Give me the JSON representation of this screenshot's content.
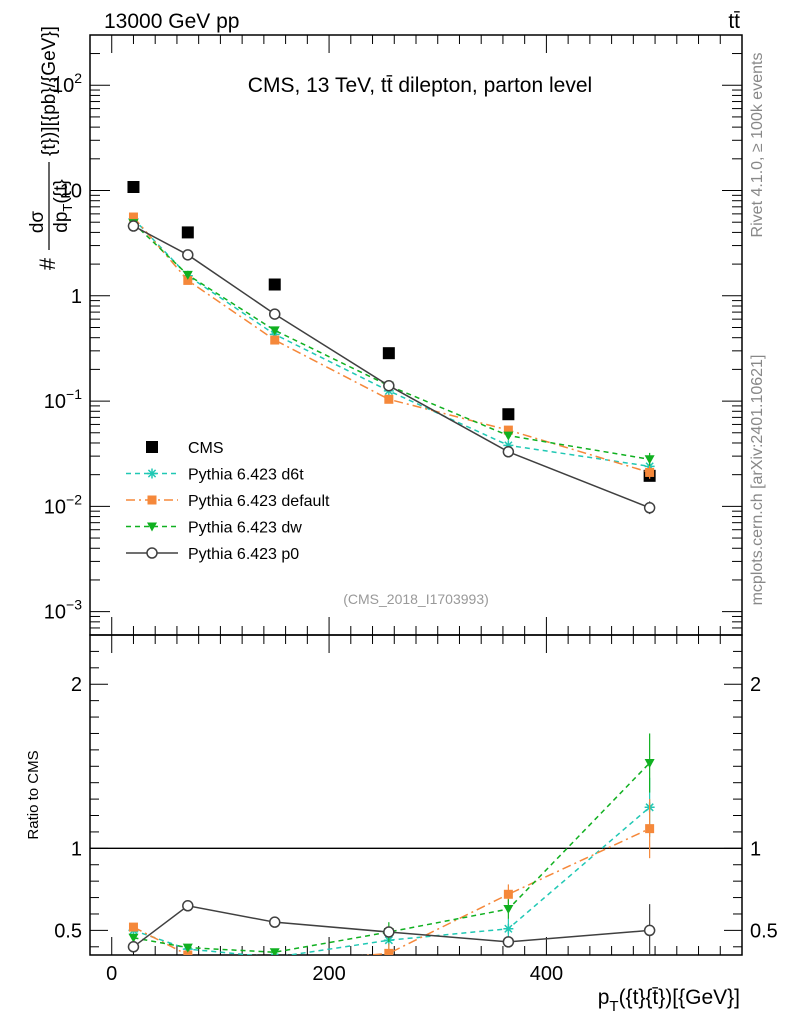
{
  "header": {
    "left": "13000 GeV pp",
    "right": "tt̄"
  },
  "side_labels": {
    "rivet": "Rivet 4.1.0, ≥ 100k events",
    "mcplots": "mcplots.cern.ch [arXiv:2401.10621]"
  },
  "chart_data": [
    {
      "type": "scatter",
      "title": "CMS, 13 TeV, tt̄ dilepton, parton level",
      "watermark": "(CMS_2018_I1703993)",
      "xlabel": "p_T({t}{t̄})[{GeV}]",
      "ylabel": "#frac{dσ}{dp_T({t}{t̄})}[{pb}/{GeV}]",
      "yscale": "log",
      "xlim": [
        -20,
        580
      ],
      "ylim": [
        0.0006,
        300
      ],
      "x_ticks": [
        0,
        200,
        400
      ],
      "y_tick_labels": [
        "10^-3",
        "10^-2",
        "10^-1",
        "1",
        "10",
        "10^2"
      ],
      "legend_position": "lower-left",
      "x": [
        20,
        70,
        150,
        255,
        365,
        495
      ],
      "series": [
        {
          "name": "CMS",
          "style": "data",
          "color": "#000000",
          "values": [
            10.8,
            4.0,
            1.28,
            0.285,
            0.075,
            0.0195
          ]
        },
        {
          "name": "Pythia 6.423 d6t",
          "style": "d6t",
          "color": "#20c8b4",
          "values": [
            5.4,
            1.55,
            0.43,
            0.125,
            0.038,
            0.024
          ]
        },
        {
          "name": "Pythia 6.423 default",
          "style": "default",
          "color": "#f5883a",
          "values": [
            5.6,
            1.4,
            0.38,
            0.104,
            0.053,
            0.021
          ]
        },
        {
          "name": "Pythia 6.423 dw",
          "style": "dw",
          "color": "#10b020",
          "values": [
            4.9,
            1.58,
            0.47,
            0.14,
            0.047,
            0.028
          ]
        },
        {
          "name": "Pythia 6.423 p0",
          "style": "p0",
          "color": "#404040",
          "values": [
            4.6,
            2.45,
            0.67,
            0.14,
            0.033,
            0.0097
          ]
        }
      ]
    },
    {
      "type": "line",
      "ylabel": "Ratio to CMS",
      "ylim": [
        0.35,
        2.3
      ],
      "y_ticks": [
        0.5,
        1,
        2
      ],
      "y_tick_labels": [
        "0.5",
        "1",
        "2"
      ],
      "reference_line": 1,
      "x": [
        20,
        70,
        150,
        255,
        365,
        495
      ],
      "series": [
        {
          "name": "Pythia 6.423 d6t",
          "style": "d6t",
          "color": "#20c8b4",
          "values": [
            0.5,
            0.386,
            0.336,
            0.44,
            0.51,
            1.25
          ]
        },
        {
          "name": "Pythia 6.423 default",
          "style": "default",
          "color": "#f5883a",
          "values": [
            0.52,
            0.35,
            0.3,
            0.36,
            0.72,
            1.12
          ]
        },
        {
          "name": "Pythia 6.423 dw",
          "style": "dw",
          "color": "#10b020",
          "values": [
            0.455,
            0.395,
            0.367,
            0.49,
            0.63,
            1.52
          ]
        },
        {
          "name": "Pythia 6.423 p0",
          "style": "p0",
          "color": "#404040",
          "values": [
            0.4,
            0.65,
            0.55,
            0.49,
            0.43,
            0.5
          ]
        }
      ]
    }
  ]
}
